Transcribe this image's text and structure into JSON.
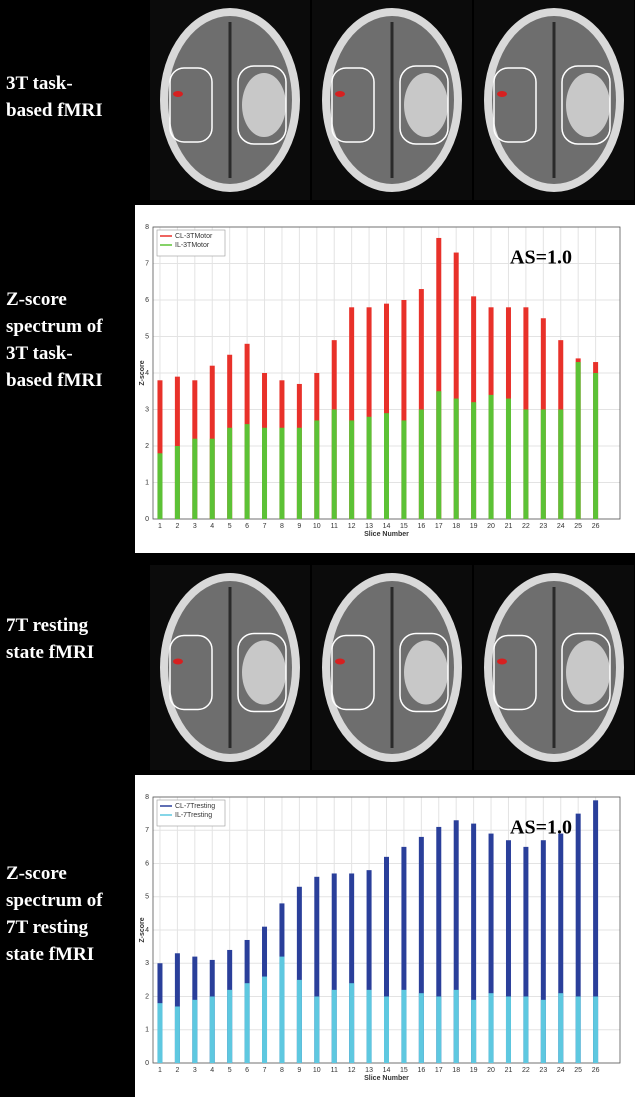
{
  "labels": [
    [
      "3T task-",
      "based fMRI"
    ],
    [
      "Z-score",
      "spectrum of",
      "3T task-",
      "based fMRI"
    ],
    [
      "7T resting",
      "state fMRI"
    ],
    [
      "Z-score",
      "spectrum of",
      "7T resting",
      "state fMRI"
    ]
  ],
  "chart_data": [
    {
      "type": "bar",
      "annotation": "AS=1.0",
      "x_label": "Slice Number",
      "y_label": "Z-score",
      "x": [
        1,
        2,
        3,
        4,
        5,
        6,
        7,
        8,
        9,
        10,
        11,
        12,
        13,
        14,
        15,
        16,
        17,
        18,
        19,
        20,
        21,
        22,
        23,
        24,
        25,
        26
      ],
      "series": [
        {
          "name": "CL-3TMotor",
          "color": "#e8312a",
          "values": [
            3.8,
            3.9,
            3.8,
            4.2,
            4.5,
            4.8,
            4.0,
            3.8,
            3.7,
            4.0,
            4.9,
            5.8,
            5.8,
            5.9,
            6.0,
            6.3,
            7.7,
            7.3,
            6.1,
            5.8,
            5.8,
            5.8,
            5.5,
            4.9,
            4.4,
            4.3
          ]
        },
        {
          "name": "IL-3TMotor",
          "color": "#5cc236",
          "values": [
            1.8,
            2.0,
            2.2,
            2.2,
            2.5,
            2.6,
            2.5,
            2.5,
            2.5,
            2.7,
            3.0,
            2.7,
            2.8,
            2.9,
            2.7,
            3.0,
            3.5,
            3.3,
            3.2,
            3.4,
            3.3,
            3.0,
            3.0,
            3.0,
            4.3,
            4.0
          ]
        }
      ],
      "xlim": [
        0.6,
        27.4
      ],
      "xticks": [
        1,
        2,
        3,
        4,
        5,
        6,
        7,
        8,
        9,
        10,
        11,
        12,
        13,
        14,
        15,
        16,
        17,
        18,
        19,
        20,
        21,
        22,
        23,
        24,
        25,
        26
      ],
      "ylim": [
        0,
        8
      ],
      "yticks": [
        0,
        1,
        2,
        3,
        4,
        5,
        6,
        7,
        8
      ],
      "grid": true,
      "legend": "top-left"
    },
    {
      "type": "bar",
      "annotation": "AS=1.0",
      "x_label": "Slice Number",
      "y_label": "Z-score",
      "x": [
        1,
        2,
        3,
        4,
        5,
        6,
        7,
        8,
        9,
        10,
        11,
        12,
        13,
        14,
        15,
        16,
        17,
        18,
        19,
        20,
        21,
        22,
        23,
        24,
        25,
        26
      ],
      "series": [
        {
          "name": "CL-7Tresting",
          "color": "#2a3f9a",
          "values": [
            3.0,
            3.3,
            3.2,
            3.1,
            3.4,
            3.7,
            4.1,
            4.8,
            5.3,
            5.6,
            5.7,
            5.7,
            5.8,
            6.2,
            6.5,
            6.8,
            7.1,
            7.3,
            7.2,
            6.9,
            6.7,
            6.5,
            6.7,
            6.9,
            7.5,
            7.9
          ]
        },
        {
          "name": "IL-7Tresting",
          "color": "#5ec8e0",
          "values": [
            1.8,
            1.7,
            1.9,
            2.0,
            2.2,
            2.4,
            2.6,
            3.2,
            2.5,
            2.0,
            2.2,
            2.4,
            2.2,
            2.0,
            2.2,
            2.1,
            2.0,
            2.2,
            1.9,
            2.1,
            2.0,
            2.0,
            1.9,
            2.1,
            2.0,
            2.0
          ]
        }
      ],
      "xlim": [
        0.6,
        27.4
      ],
      "xticks": [
        1,
        2,
        3,
        4,
        5,
        6,
        7,
        8,
        9,
        10,
        11,
        12,
        13,
        14,
        15,
        16,
        17,
        18,
        19,
        20,
        21,
        22,
        23,
        24,
        25,
        26
      ],
      "ylim": [
        0,
        8
      ],
      "yticks": [
        0,
        1,
        2,
        3,
        4,
        5,
        6,
        7,
        8
      ],
      "grid": true,
      "legend": "top-left"
    }
  ]
}
